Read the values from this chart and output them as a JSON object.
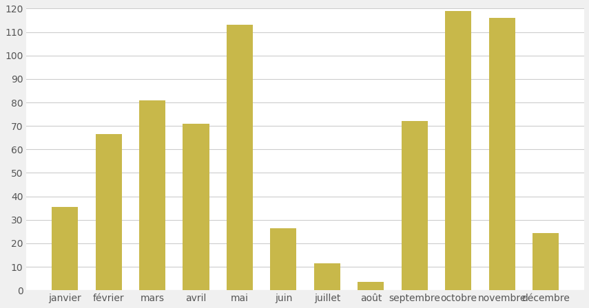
{
  "categories": [
    "janvier",
    "février",
    "mars",
    "avril",
    "mai",
    "juin",
    "juillet",
    "août",
    "septembre",
    "octobre",
    "novembre",
    "décembre"
  ],
  "values": [
    35.5,
    66.5,
    81,
    71,
    113,
    26.5,
    11.5,
    3.5,
    72,
    119,
    116,
    24.5
  ],
  "bar_color": "#C8B84A",
  "bar_edge_color": "none",
  "ylim": [
    0,
    120
  ],
  "yticks": [
    0,
    10,
    20,
    30,
    40,
    50,
    60,
    70,
    80,
    90,
    100,
    110,
    120
  ],
  "grid_color": "#cccccc",
  "background_color": "#f0f0f0",
  "plot_background": "#ffffff",
  "tick_fontsize": 10,
  "bar_width": 0.6
}
